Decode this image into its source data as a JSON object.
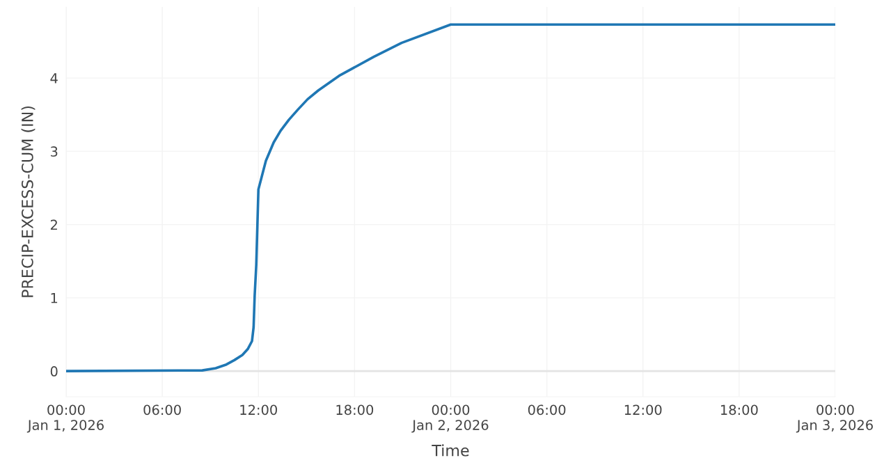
{
  "chart_data": {
    "type": "line",
    "xlabel": "Time",
    "ylabel": "PRECIP-EXCESS-CUM (IN)",
    "x": [
      "2026-01-01T00:00",
      "2026-01-01T08:30",
      "2026-01-01T09:20",
      "2026-01-01T10:00",
      "2026-01-01T10:30",
      "2026-01-01T11:00",
      "2026-01-01T11:20",
      "2026-01-01T11:36",
      "2026-01-01T11:42",
      "2026-01-01T11:46",
      "2026-01-01T11:52",
      "2026-01-01T12:00",
      "2026-01-01T12:28",
      "2026-01-01T12:57",
      "2026-01-01T13:23",
      "2026-01-01T13:54",
      "2026-01-01T14:28",
      "2026-01-01T15:04",
      "2026-01-01T15:44",
      "2026-01-01T17:02",
      "2026-01-01T19:12",
      "2026-01-01T20:56",
      "2026-01-02T00:00",
      "2026-01-03T00:00"
    ],
    "series": [
      {
        "color": "#1f77b4",
        "values": [
          0,
          0.01,
          0.04,
          0.09,
          0.15,
          0.22,
          0.3,
          0.41,
          0.6,
          1.03,
          1.45,
          2.48,
          2.87,
          3.12,
          3.28,
          3.43,
          3.57,
          3.71,
          3.83,
          4.03,
          4.29,
          4.48,
          4.73,
          4.73
        ]
      }
    ],
    "xlim": [
      "2026-01-01T00:00",
      "2026-01-03T00:00"
    ],
    "xticks": [
      {
        "value": "2026-01-01T00:00",
        "label": "00:00\nJan 1, 2026"
      },
      {
        "value": "2026-01-01T06:00",
        "label": "06:00"
      },
      {
        "value": "2026-01-01T12:00",
        "label": "12:00"
      },
      {
        "value": "2026-01-01T18:00",
        "label": "18:00"
      },
      {
        "value": "2026-01-02T00:00",
        "label": "00:00\nJan 2, 2026"
      },
      {
        "value": "2026-01-02T06:00",
        "label": "06:00"
      },
      {
        "value": "2026-01-02T12:00",
        "label": "12:00"
      },
      {
        "value": "2026-01-02T18:00",
        "label": "18:00"
      },
      {
        "value": "2026-01-03T00:00",
        "label": "00:00\nJan 3, 2026"
      }
    ],
    "ylim": [
      -0.35,
      4.97
    ],
    "yticks": [
      0,
      1,
      2,
      3,
      4
    ],
    "ref_lines": [
      {
        "axis": "y",
        "value": 0,
        "color": "#e4e4e4"
      }
    ],
    "grid": true,
    "legend": false,
    "marker": "none",
    "line_style": "solid"
  }
}
